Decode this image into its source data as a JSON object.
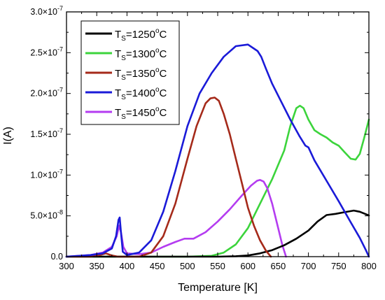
{
  "chart_data": {
    "type": "line",
    "xlabel": "Temperature [K]",
    "ylabel": "I(A)",
    "xlim": [
      300,
      800
    ],
    "ylim": [
      0,
      3e-07
    ],
    "xticks": [
      300,
      350,
      400,
      450,
      500,
      550,
      600,
      650,
      700,
      750,
      800
    ],
    "yticks": [
      0,
      5e-08,
      1e-07,
      1.5e-07,
      2e-07,
      2.5e-07,
      3e-07
    ],
    "ytick_labels": [
      {
        "mantissa": "0.0",
        "exponent": ""
      },
      {
        "mantissa": "5.0×10",
        "exponent": "-8"
      },
      {
        "mantissa": "1.0×10",
        "exponent": "-7"
      },
      {
        "mantissa": "1.5×10",
        "exponent": "-7"
      },
      {
        "mantissa": "2.0×10",
        "exponent": "-7"
      },
      {
        "mantissa": "2.5×10",
        "exponent": "-7"
      },
      {
        "mantissa": "3.0×10",
        "exponent": "-7"
      }
    ],
    "grid": false,
    "legend_position": "top-left",
    "series": [
      {
        "name": "T_S=1250°C",
        "label_main": "T",
        "label_sub": "S",
        "label_rest": "=1250",
        "label_sup": "o",
        "label_unit": "C",
        "color": "#000000",
        "x": [
          300,
          400,
          450,
          500,
          550,
          580,
          600,
          620,
          640,
          660,
          680,
          700,
          715,
          730,
          745,
          760,
          775,
          785,
          795,
          800
        ],
        "y": [
          0,
          0,
          0,
          0,
          0,
          5e-10,
          1.5e-09,
          4e-09,
          8e-09,
          1.4e-08,
          2.2e-08,
          3.2e-08,
          4.3e-08,
          5.1e-08,
          5.25e-08,
          5.45e-08,
          5.65e-08,
          5.5e-08,
          5.2e-08,
          5.05e-08
        ]
      },
      {
        "name": "T_S=1300°C",
        "label_main": "T",
        "label_sub": "S",
        "label_rest": "=1300",
        "label_sup": "o",
        "label_unit": "C",
        "color": "#3cd43c",
        "x": [
          300,
          500,
          540,
          560,
          580,
          600,
          620,
          640,
          660,
          670,
          680,
          686,
          692,
          700,
          710,
          720,
          730,
          740,
          750,
          760,
          770,
          778,
          785,
          792,
          800
        ],
        "y": [
          0,
          0,
          1e-09,
          5e-09,
          1.5e-08,
          3.5e-08,
          6.5e-08,
          9.5e-08,
          1.3e-07,
          1.6e-07,
          1.82e-07,
          1.85e-07,
          1.82e-07,
          1.68e-07,
          1.55e-07,
          1.5e-07,
          1.46e-07,
          1.4e-07,
          1.36e-07,
          1.28e-07,
          1.2e-07,
          1.19e-07,
          1.26e-07,
          1.45e-07,
          1.68e-07
        ]
      },
      {
        "name": "T_S=1350°C",
        "label_main": "T",
        "label_sub": "S",
        "label_rest": "=1350",
        "label_sup": "o",
        "label_unit": "C",
        "color": "#a52a1a",
        "x": [
          300,
          340,
          355,
          365,
          375,
          385,
          400,
          420,
          440,
          460,
          480,
          500,
          515,
          530,
          538,
          545,
          552,
          560,
          570,
          580,
          590,
          600,
          610,
          620,
          630,
          638
        ],
        "y": [
          0,
          0,
          2e-09,
          4e-09,
          1.5e-09,
          0,
          0,
          0,
          5e-09,
          2.5e-08,
          6.5e-08,
          1.2e-07,
          1.6e-07,
          1.88e-07,
          1.94e-07,
          1.95e-07,
          1.91e-07,
          1.75e-07,
          1.5e-07,
          1.2e-07,
          9e-08,
          6e-08,
          3.8e-08,
          2e-08,
          7e-09,
          0
        ]
      },
      {
        "name": "T_S=1400°C",
        "label_main": "T",
        "label_sub": "S",
        "label_rest": "=1400",
        "label_sup": "o",
        "label_unit": "C",
        "color": "#1a1ad8",
        "x": [
          300,
          340,
          360,
          375,
          382,
          386,
          388,
          390,
          393,
          400,
          420,
          440,
          460,
          480,
          500,
          520,
          540,
          560,
          580,
          600,
          610,
          616,
          622,
          630,
          640,
          655,
          670,
          685,
          695,
          700,
          710,
          730,
          750,
          770,
          785,
          795,
          800
        ],
        "y": [
          0,
          2e-09,
          4e-09,
          1e-08,
          2.5e-08,
          4.5e-08,
          4.8e-08,
          3e-08,
          6e-09,
          2e-09,
          5e-09,
          2e-08,
          5.5e-08,
          1.05e-07,
          1.6e-07,
          2e-07,
          2.25e-07,
          2.45e-07,
          2.58e-07,
          2.6e-07,
          2.55e-07,
          2.52e-07,
          2.45e-07,
          2.3e-07,
          2.12e-07,
          1.9e-07,
          1.68e-07,
          1.48e-07,
          1.36e-07,
          1.34e-07,
          1.18e-07,
          9.3e-08,
          6.8e-08,
          4.2e-08,
          2.3e-08,
          8e-09,
          0
        ]
      },
      {
        "name": "T_S=1450°C",
        "label_main": "T",
        "label_sub": "S",
        "label_rest": "=1450",
        "label_sup": "o",
        "label_unit": "C",
        "color": "#b43cf0",
        "x": [
          300,
          340,
          360,
          375,
          383,
          387,
          390,
          394,
          400,
          420,
          440,
          460,
          480,
          495,
          510,
          530,
          550,
          570,
          590,
          605,
          615,
          620,
          626,
          632,
          640,
          650,
          657,
          663
        ],
        "y": [
          0,
          2e-09,
          5e-09,
          1.2e-08,
          2.5e-08,
          3.8e-08,
          3e-08,
          1.2e-08,
          4e-09,
          3e-09,
          5e-09,
          1.2e-08,
          1.8e-08,
          2.2e-08,
          2.2e-08,
          3e-08,
          4.3e-08,
          5.8e-08,
          7.5e-08,
          8.7e-08,
          9.3e-08,
          9.4e-08,
          9.2e-08,
          8.4e-08,
          6.5e-08,
          3.5e-08,
          1.4e-08,
          0
        ]
      }
    ]
  }
}
